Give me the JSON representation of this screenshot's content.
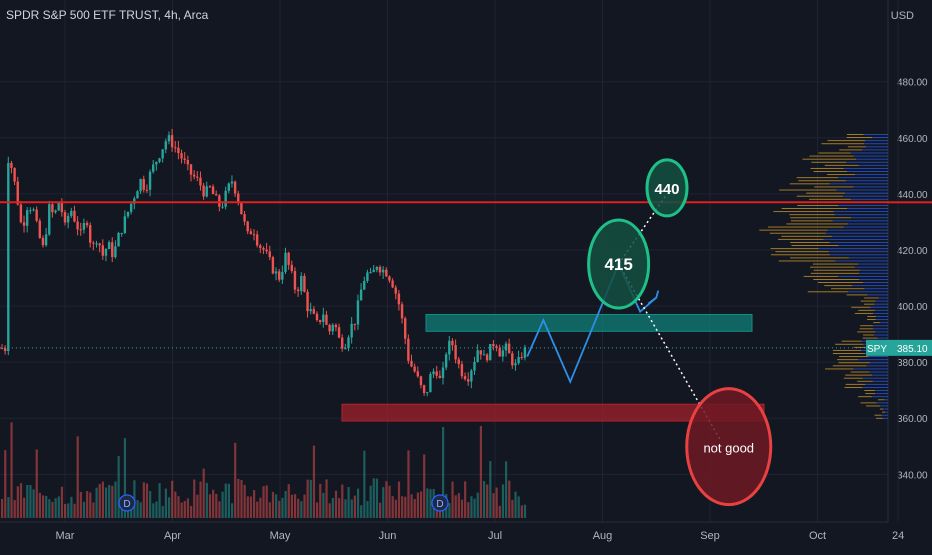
{
  "chart_data": {
    "type": "candlestick",
    "title": "SPDR S&P 500 ETF TRUST, 4h, Arca",
    "symbol": "SPY",
    "last_price": "385.10",
    "currency": "USD",
    "y_ticks": [
      "340.00",
      "360.00",
      "380.00",
      "400.00",
      "420.00",
      "440.00",
      "460.00",
      "480.00"
    ],
    "ylim": [
      323,
      507
    ],
    "x_ticks": [
      {
        "label": "Mar",
        "pos": 0.0
      },
      {
        "label": "Apr",
        "pos": 1.0
      },
      {
        "label": "May",
        "pos": 2.0
      },
      {
        "label": "Jun",
        "pos": 3.0
      },
      {
        "label": "Jul",
        "pos": 4.0
      },
      {
        "label": "Aug",
        "pos": 5.0
      },
      {
        "label": "Sep",
        "pos": 6.0
      },
      {
        "label": "Oct",
        "pos": 7.0
      },
      {
        "label": "24",
        "pos": 7.75
      }
    ],
    "price_path": [
      [
        -0.55,
        455
      ],
      [
        -0.5,
        450
      ],
      [
        -0.45,
        440
      ],
      [
        -0.4,
        427
      ],
      [
        -0.35,
        436
      ],
      [
        -0.3,
        435
      ],
      [
        -0.25,
        426
      ],
      [
        -0.2,
        420
      ],
      [
        -0.15,
        435
      ],
      [
        -0.1,
        432
      ],
      [
        -0.05,
        438
      ],
      [
        0.0,
        428
      ],
      [
        0.05,
        435
      ],
      [
        0.1,
        430
      ],
      [
        0.15,
        425
      ],
      [
        0.2,
        432
      ],
      [
        0.25,
        420
      ],
      [
        0.3,
        425
      ],
      [
        0.35,
        418
      ],
      [
        0.4,
        422
      ],
      [
        0.45,
        418
      ],
      [
        0.5,
        425
      ],
      [
        0.55,
        430
      ],
      [
        0.6,
        435
      ],
      [
        0.65,
        440
      ],
      [
        0.7,
        445
      ],
      [
        0.75,
        442
      ],
      [
        0.8,
        448
      ],
      [
        0.85,
        452
      ],
      [
        0.9,
        456
      ],
      [
        0.95,
        460
      ],
      [
        1.0,
        458
      ],
      [
        1.05,
        455
      ],
      [
        1.1,
        452
      ],
      [
        1.15,
        448
      ],
      [
        1.2,
        446
      ],
      [
        1.25,
        444
      ],
      [
        1.3,
        440
      ],
      [
        1.35,
        442
      ],
      [
        1.4,
        438
      ],
      [
        1.45,
        435
      ],
      [
        1.5,
        440
      ],
      [
        1.55,
        445
      ],
      [
        1.6,
        440
      ],
      [
        1.65,
        432
      ],
      [
        1.7,
        425
      ],
      [
        1.75,
        428
      ],
      [
        1.8,
        422
      ],
      [
        1.85,
        420
      ],
      [
        1.9,
        416
      ],
      [
        1.95,
        412
      ],
      [
        2.0,
        410
      ],
      [
        2.05,
        418
      ],
      [
        2.1,
        412
      ],
      [
        2.15,
        405
      ],
      [
        2.2,
        410
      ],
      [
        2.25,
        400
      ],
      [
        2.3,
        397
      ],
      [
        2.35,
        393
      ],
      [
        2.4,
        398
      ],
      [
        2.45,
        390
      ],
      [
        2.5,
        395
      ],
      [
        2.55,
        388
      ],
      [
        2.6,
        386
      ],
      [
        2.65,
        392
      ],
      [
        2.7,
        395
      ],
      [
        2.75,
        405
      ],
      [
        2.8,
        412
      ],
      [
        2.85,
        410
      ],
      [
        2.9,
        415
      ],
      [
        2.95,
        413
      ],
      [
        3.0,
        412
      ],
      [
        3.05,
        408
      ],
      [
        3.1,
        402
      ],
      [
        3.15,
        392
      ],
      [
        3.2,
        380
      ],
      [
        3.25,
        377
      ],
      [
        3.3,
        372
      ],
      [
        3.35,
        367
      ],
      [
        3.4,
        375
      ],
      [
        3.45,
        378
      ],
      [
        3.5,
        372
      ],
      [
        3.55,
        385
      ],
      [
        3.6,
        387
      ],
      [
        3.65,
        380
      ],
      [
        3.7,
        376
      ],
      [
        3.75,
        375
      ],
      [
        3.8,
        380
      ],
      [
        3.85,
        386
      ],
      [
        3.9,
        381
      ],
      [
        3.95,
        384
      ],
      [
        4.0,
        388
      ],
      [
        4.05,
        383
      ],
      [
        4.1,
        385
      ],
      [
        4.15,
        381
      ],
      [
        4.2,
        378
      ],
      [
        4.25,
        383
      ],
      [
        4.3,
        385
      ]
    ],
    "annotations": {
      "horizontal_line": 437,
      "upper_zone": [
        391,
        397
      ],
      "lower_zone": [
        359,
        365
      ],
      "circle_labels": [
        "415",
        "440",
        "not good"
      ],
      "projection_path": [
        [
          4.3,
          382
        ],
        [
          4.45,
          395
        ],
        [
          4.7,
          373
        ],
        [
          5.15,
          415
        ],
        [
          5.35,
          398
        ],
        [
          5.5,
          403
        ]
      ],
      "projection_targets": [
        [
          5.15,
          415
        ],
        [
          5.6,
          440
        ]
      ],
      "downside_target": [
        6.1,
        352
      ]
    },
    "grid": true,
    "legend": "none"
  },
  "colors": {
    "up": "#26a69a",
    "down": "#ef5350",
    "background": "#131722",
    "grid": "#1f2332",
    "axis_text": "#b2b5be",
    "red_line": "#e0201f",
    "teal_zone": "#0f8f85",
    "red_zone": "#b5222c",
    "projection": "#2d8fe8",
    "label_bg": "#26a69a"
  },
  "icons": [
    "dividend-icon-1",
    "dividend-icon-2"
  ],
  "dividend_label": "D"
}
